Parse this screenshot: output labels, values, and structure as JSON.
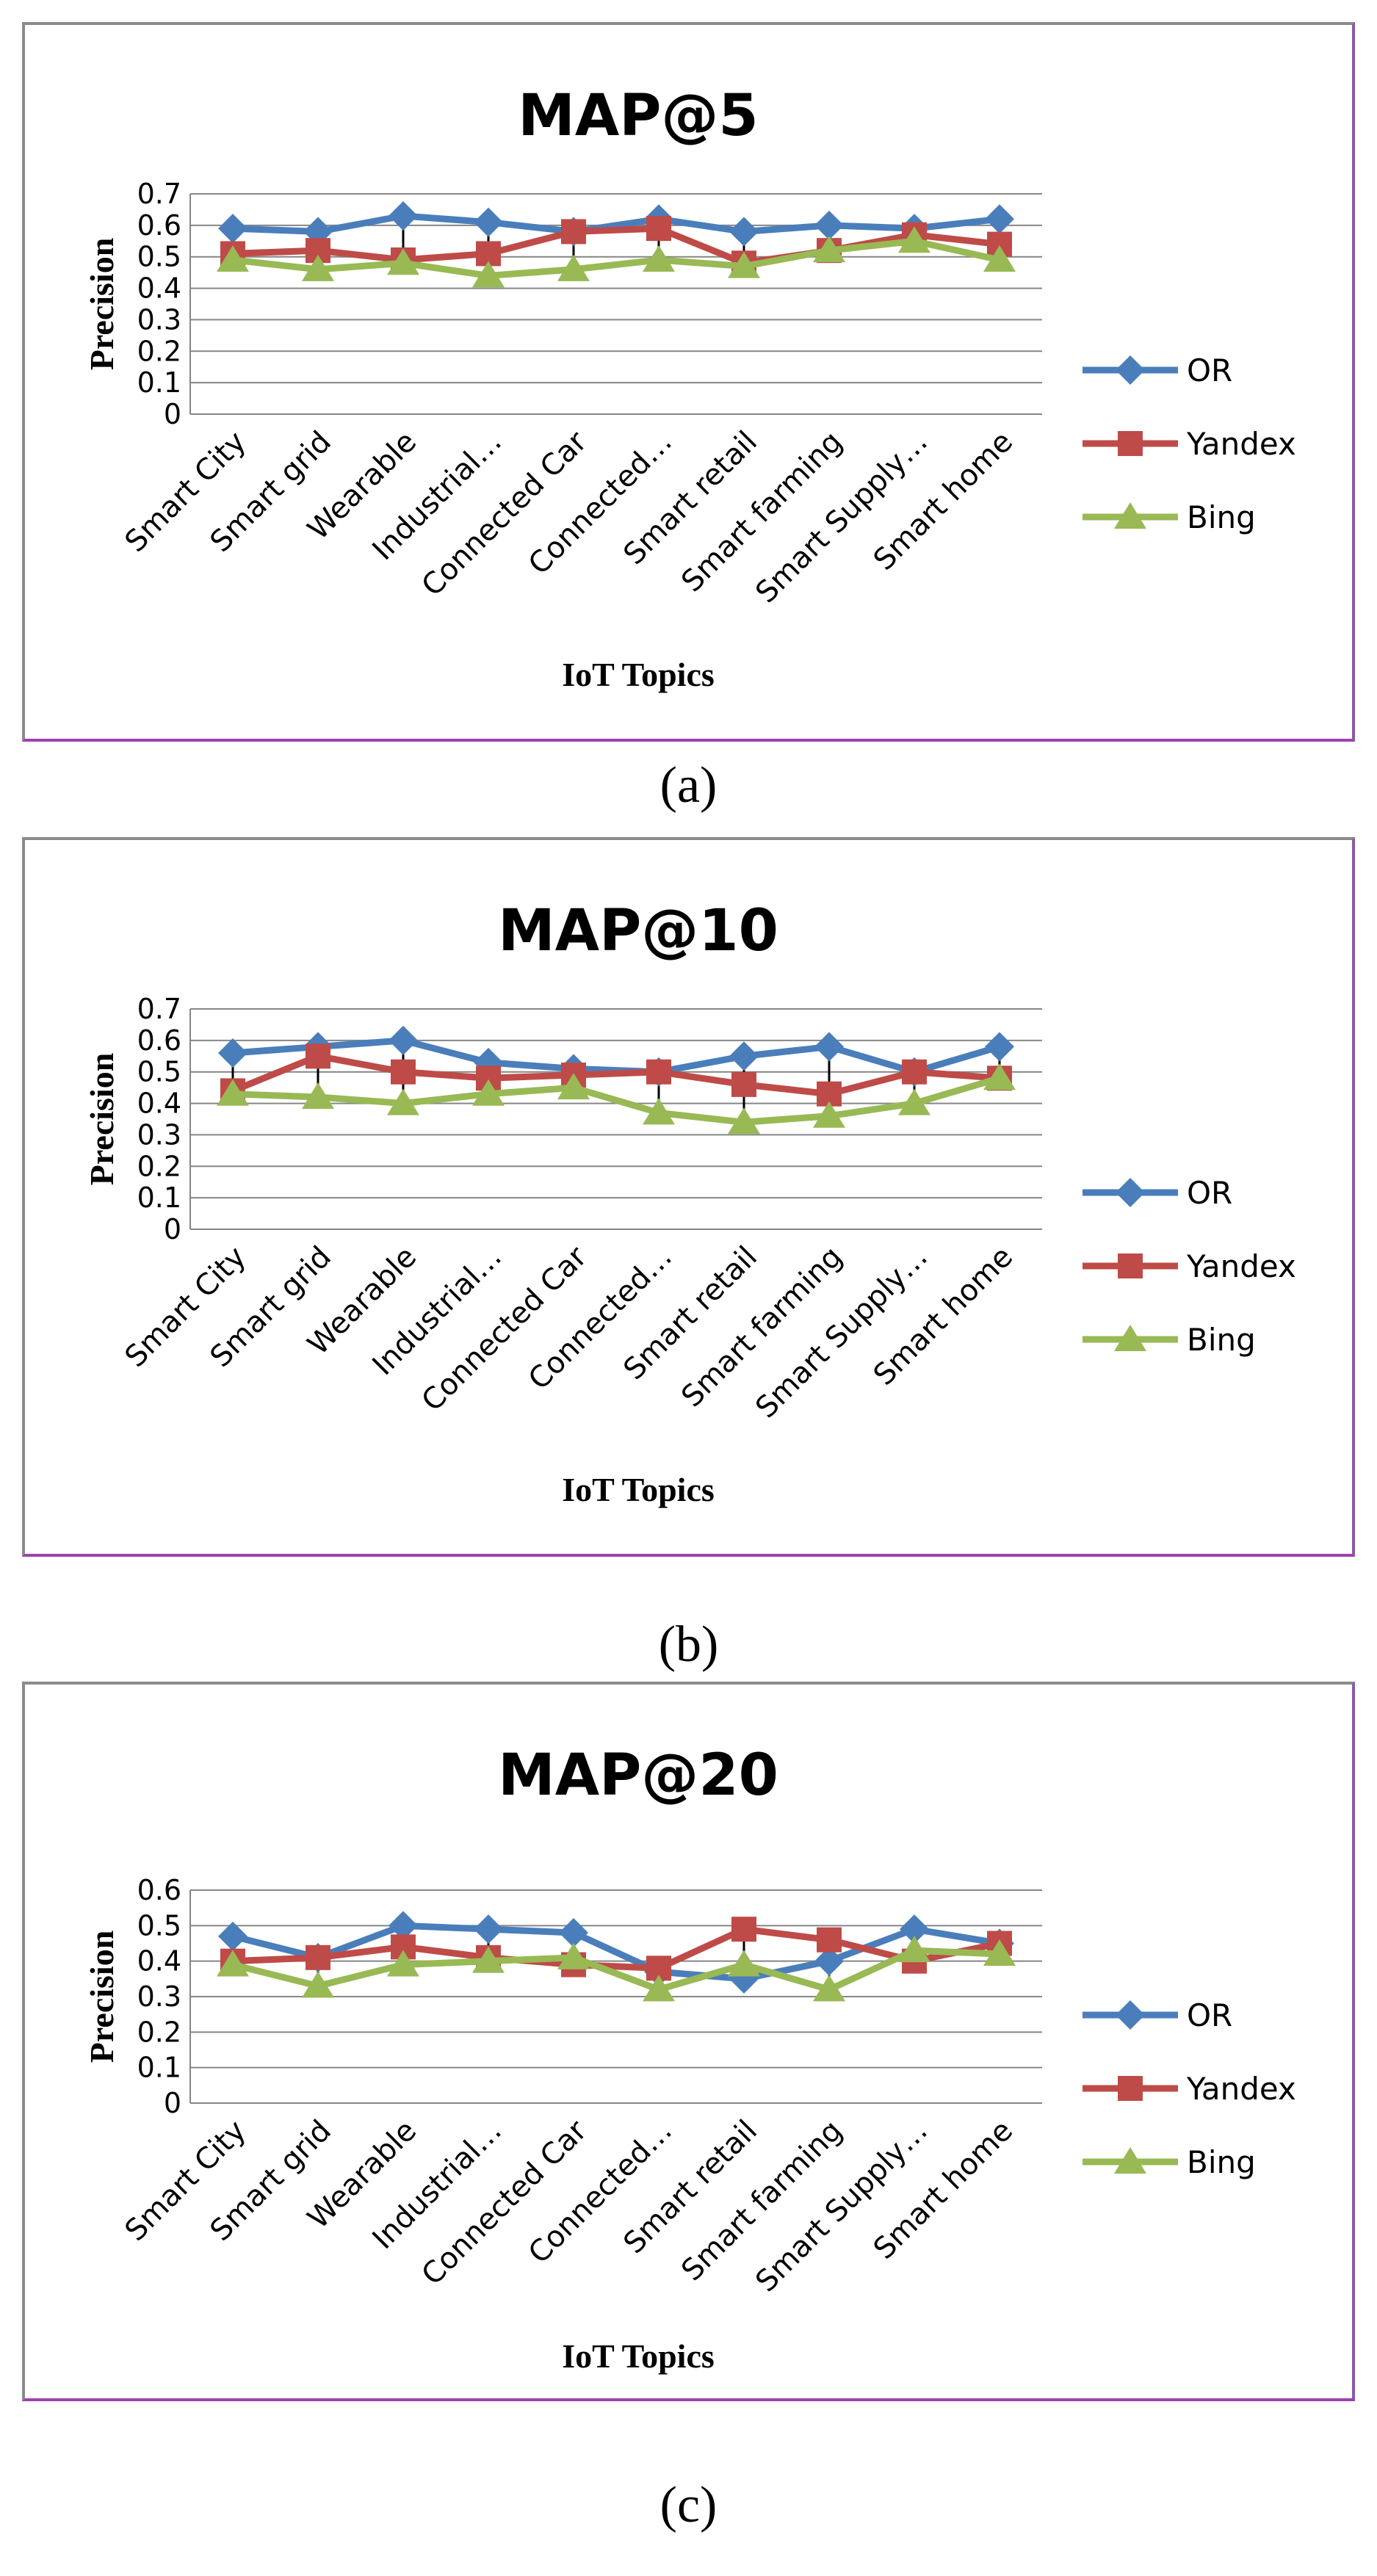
{
  "captions": [
    "(a)",
    "(b)",
    "(c)"
  ],
  "colors": {
    "OR": "#4a7ebb",
    "Yandex": "#be4b48",
    "Bing": "#98b954",
    "grid": "#868686"
  },
  "chart_data": [
    {
      "type": "line",
      "title": "MAP@5",
      "xlabel": "IoT Topics",
      "ylabel": "Precision",
      "ylim": [
        0,
        0.7
      ],
      "yticks": [
        "0",
        "0.1",
        "0.2",
        "0.3",
        "0.4",
        "0.5",
        "0.6",
        "0.7"
      ],
      "categories": [
        "Smart City",
        "Smart grid",
        "Wearable",
        "Industrial…",
        "Connected Car",
        "Connected…",
        "Smart retail",
        "Smart farming",
        "Smart Supply…",
        "Smart home"
      ],
      "series": [
        {
          "name": "OR",
          "values": [
            0.59,
            0.58,
            0.63,
            0.61,
            0.58,
            0.62,
            0.58,
            0.6,
            0.59,
            0.62
          ]
        },
        {
          "name": "Yandex",
          "values": [
            0.51,
            0.52,
            0.49,
            0.51,
            0.58,
            0.59,
            0.48,
            0.52,
            0.57,
            0.54
          ]
        },
        {
          "name": "Bing",
          "values": [
            0.49,
            0.46,
            0.48,
            0.44,
            0.46,
            0.49,
            0.47,
            0.52,
            0.55,
            0.49
          ]
        }
      ],
      "grid": true,
      "legend": "right"
    },
    {
      "type": "line",
      "title": "MAP@10",
      "xlabel": "IoT Topics",
      "ylabel": "Precision",
      "ylim": [
        0,
        0.7
      ],
      "yticks": [
        "0",
        "0.1",
        "0.2",
        "0.3",
        "0.4",
        "0.5",
        "0.6",
        "0.7"
      ],
      "categories": [
        "Smart City",
        "Smart grid",
        "Wearable",
        "Industrial…",
        "Connected Car",
        "Connected…",
        "Smart retail",
        "Smart farming",
        "Smart Supply…",
        "Smart home"
      ],
      "series": [
        {
          "name": "OR",
          "values": [
            0.56,
            0.58,
            0.6,
            0.53,
            0.51,
            0.5,
            0.55,
            0.58,
            0.5,
            0.58
          ]
        },
        {
          "name": "Yandex",
          "values": [
            0.44,
            0.55,
            0.5,
            0.48,
            0.49,
            0.5,
            0.46,
            0.43,
            0.5,
            0.48
          ]
        },
        {
          "name": "Bing",
          "values": [
            0.43,
            0.42,
            0.4,
            0.43,
            0.45,
            0.37,
            0.34,
            0.36,
            0.4,
            0.48
          ]
        }
      ],
      "grid": true,
      "legend": "right"
    },
    {
      "type": "line",
      "title": "MAP@20",
      "xlabel": "IoT Topics",
      "ylabel": "Precision",
      "ylim": [
        0,
        0.6
      ],
      "yticks": [
        "0",
        "0.1",
        "0.2",
        "0.3",
        "0.4",
        "0.5",
        "0.6"
      ],
      "categories": [
        "Smart City",
        "Smart grid",
        "Wearable",
        "Industrial…",
        "Connected Car",
        "Connected…",
        "Smart retail",
        "Smart farming",
        "Smart Supply…",
        "Smart home"
      ],
      "series": [
        {
          "name": "OR",
          "values": [
            0.47,
            0.41,
            0.5,
            0.49,
            0.48,
            0.37,
            0.35,
            0.4,
            0.49,
            0.45
          ]
        },
        {
          "name": "Yandex",
          "values": [
            0.4,
            0.41,
            0.44,
            0.41,
            0.39,
            0.38,
            0.49,
            0.46,
            0.4,
            0.45
          ]
        },
        {
          "name": "Bing",
          "values": [
            0.39,
            0.33,
            0.39,
            0.4,
            0.41,
            0.32,
            0.39,
            0.32,
            0.43,
            0.42
          ]
        }
      ],
      "grid": true,
      "legend": "right"
    }
  ]
}
